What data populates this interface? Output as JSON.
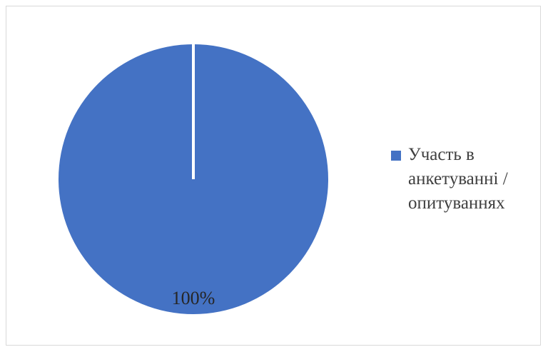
{
  "chart_data": {
    "type": "pie",
    "title": "",
    "categories": [
      "Участь в анкетуванні / опитуваннях"
    ],
    "values": [
      100
    ],
    "data_labels": [
      "100%"
    ],
    "legend": {
      "placement": "right",
      "entries": [
        "Участь в\nанкетуванні /\nопитуваннях"
      ]
    },
    "colors": [
      "#4472C4"
    ]
  }
}
